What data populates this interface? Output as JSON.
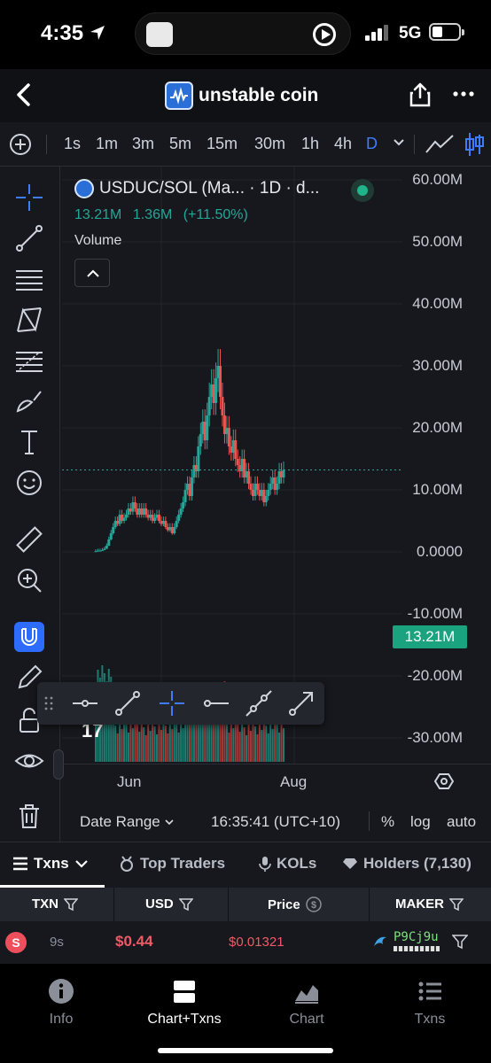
{
  "status_bar": {
    "time": "4:35",
    "network": "5G"
  },
  "navbar": {
    "title": "unstable coin"
  },
  "timeframes": [
    {
      "label": "1s",
      "active": false
    },
    {
      "label": "1m",
      "active": false
    },
    {
      "label": "3m",
      "active": false
    },
    {
      "label": "5m",
      "active": false
    },
    {
      "label": "15m",
      "active": false
    },
    {
      "label": "30m",
      "active": false
    },
    {
      "label": "1h",
      "active": false
    },
    {
      "label": "4h",
      "active": false
    },
    {
      "label": "D",
      "active": true
    }
  ],
  "legend": {
    "pair": "USDUC/SOL (Ma... · 1D · d...",
    "value": "13.21M",
    "change": "1.36M",
    "change_pct": "(+11.50%)",
    "volume_label": "Volume"
  },
  "current_price_label": "13.21M",
  "chart_data": {
    "type": "candlestick",
    "title": "USDUC/SOL (Ma... · 1D · d...",
    "x_ticks": [
      "Jun",
      "Aug"
    ],
    "y_ticks": [
      "60.00M",
      "50.00M",
      "40.00M",
      "30.00M",
      "20.00M",
      "10.00M",
      "0.0000",
      "-10.00M",
      "-20.00M",
      "-30.00M"
    ],
    "ylim": [
      -33000000,
      60000000
    ],
    "last_value": 13210000,
    "grid": true,
    "colors": {
      "up": "#26a69a",
      "down": "#ef5350"
    },
    "series": [
      {
        "name": "USDUC/SOL",
        "close_approx": [
          0.1,
          0.2,
          0.2,
          0.3,
          0.5,
          1,
          2,
          3,
          4,
          5,
          4.5,
          6,
          5,
          5.5,
          6,
          7,
          6.5,
          8,
          7,
          6,
          7,
          6,
          7,
          6,
          5.5,
          6,
          5,
          5.5,
          6,
          5,
          4.5,
          5,
          4,
          3.5,
          4,
          3,
          4,
          5,
          6,
          7,
          8,
          10,
          11,
          9,
          12,
          14,
          13,
          17,
          19,
          21,
          18,
          22,
          25,
          27,
          24,
          28,
          30,
          25,
          22,
          19,
          20,
          17,
          16,
          18,
          15,
          14,
          13,
          15,
          12,
          13,
          11,
          10,
          9,
          11,
          10,
          9,
          10,
          8,
          9,
          10,
          11,
          12,
          10,
          11,
          13,
          12,
          13.21
        ]
      }
    ]
  },
  "date_range_label": "Date Range",
  "clock_label": "16:35:41 (UTC+10)",
  "scale_options": {
    "percent": "%",
    "log": "log",
    "auto": "auto"
  },
  "tabs": {
    "txns": "Txns",
    "top_traders": "Top Traders",
    "kols": "KOLs",
    "holders": "Holders (7,130)"
  },
  "table": {
    "headers": {
      "txn": "TXN",
      "usd": "USD",
      "price": "Price",
      "maker": "MAKER"
    },
    "rows": [
      {
        "type": "S",
        "age": "9s",
        "usd": "$0.44",
        "price": "$0.01321",
        "maker": "P9Cj9u"
      }
    ]
  },
  "bottom_nav": {
    "info": "Info",
    "chart_txns": "Chart+Txns",
    "chart": "Chart",
    "txns": "Txns"
  }
}
